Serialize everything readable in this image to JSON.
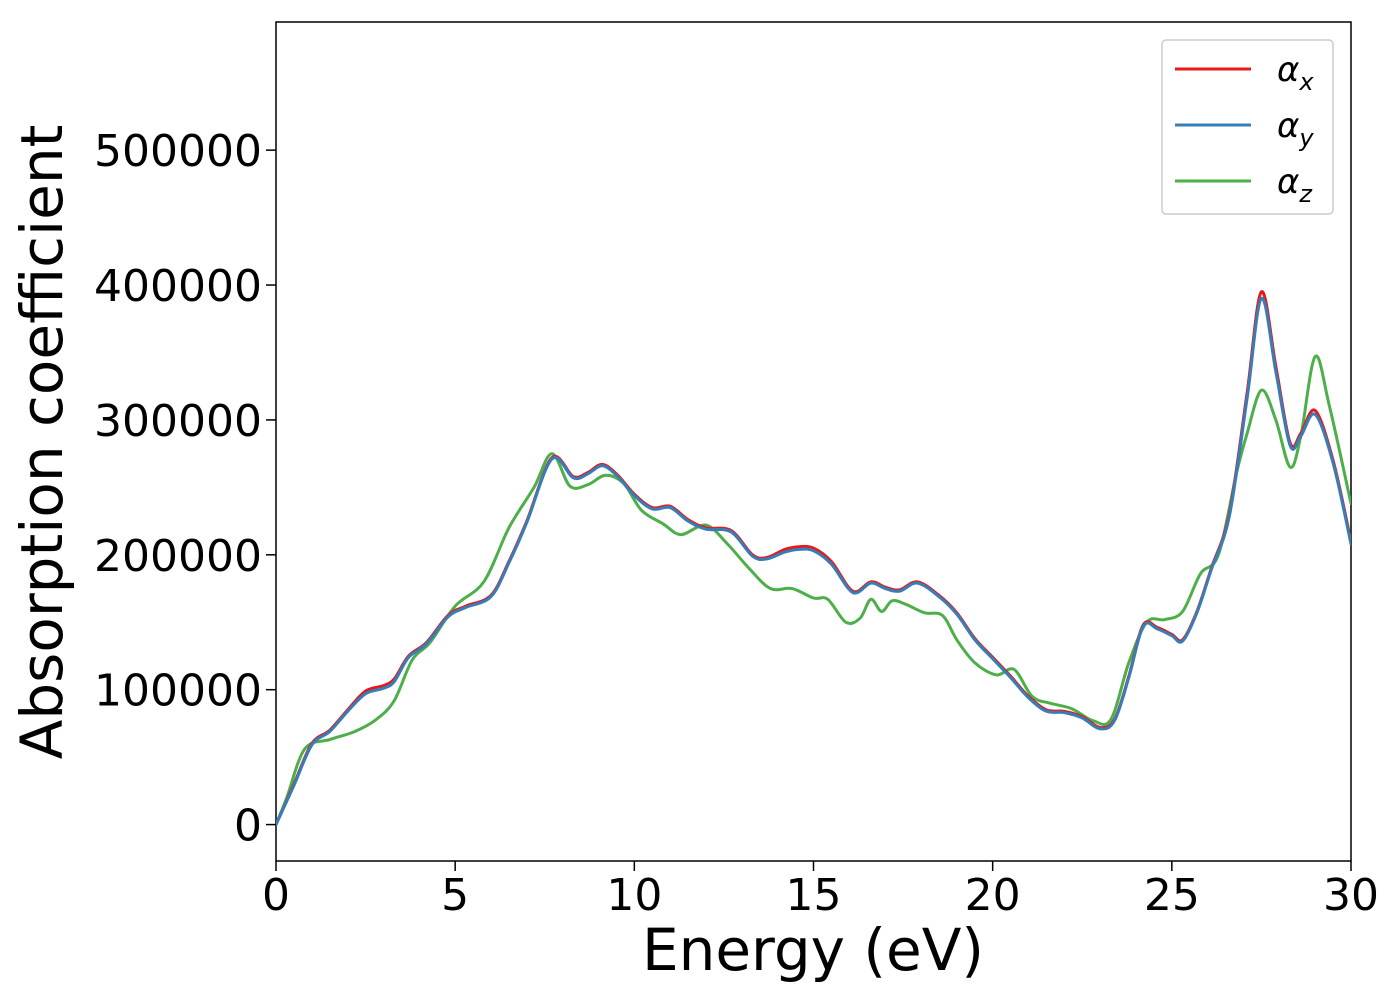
{
  "chart_data": {
    "type": "line",
    "title": "",
    "xlabel": "Energy (eV)",
    "ylabel": "Absorption coefficient",
    "xlim": [
      0,
      30
    ],
    "ylim": [
      -27000,
      595000
    ],
    "x_ticks": [
      0,
      5,
      10,
      15,
      20,
      25,
      30
    ],
    "x_tick_labels": [
      "0",
      "5",
      "10",
      "15",
      "20",
      "25",
      "30"
    ],
    "y_ticks": [
      0,
      100000,
      200000,
      300000,
      400000,
      500000
    ],
    "y_tick_labels": [
      "0",
      "100000",
      "200000",
      "300000",
      "400000",
      "500000"
    ],
    "grid": false,
    "legend_position": "top-right",
    "series": [
      {
        "name": "αx",
        "color": "#e41a1c",
        "x": [
          0,
          0.5,
          1,
          1.5,
          2,
          2.5,
          3,
          3.3,
          3.7,
          4.2,
          4.8,
          5.3,
          6,
          6.5,
          7,
          7.7,
          8.3,
          8.7,
          9.1,
          9.5,
          10,
          10.5,
          11,
          11.5,
          12,
          12.7,
          13.3,
          13.7,
          14.2,
          14.6,
          15,
          15.5,
          16.1,
          16.6,
          17,
          17.4,
          17.9,
          18.5,
          19,
          19.5,
          20,
          20.5,
          21,
          21.5,
          22,
          22.5,
          23,
          23.4,
          23.8,
          24.2,
          24.6,
          25,
          25.3,
          25.7,
          26.1,
          26.6,
          27.1,
          27.5,
          27.9,
          28.3,
          28.6,
          29,
          29.5,
          30
        ],
        "y": [
          0,
          30000,
          60000,
          70000,
          85000,
          99000,
          103000,
          108000,
          125000,
          135000,
          155000,
          162000,
          170000,
          195000,
          225000,
          272000,
          258000,
          261000,
          267000,
          260000,
          245000,
          235000,
          236000,
          226000,
          220000,
          218000,
          200000,
          198000,
          204000,
          206000,
          205000,
          195000,
          173000,
          180000,
          176000,
          174000,
          180000,
          170000,
          157000,
          138000,
          124000,
          110000,
          95000,
          85000,
          84000,
          80000,
          72000,
          78000,
          110000,
          148000,
          146000,
          141000,
          137000,
          158000,
          190000,
          230000,
          320000,
          395000,
          340000,
          283000,
          290000,
          307000,
          270000,
          210000
        ]
      },
      {
        "name": "αy",
        "color": "#377eb8",
        "x": [
          0,
          0.5,
          1,
          1.5,
          2,
          2.5,
          3,
          3.3,
          3.7,
          4.2,
          4.8,
          5.3,
          6,
          6.5,
          7,
          7.7,
          8.3,
          8.7,
          9.1,
          9.5,
          10,
          10.5,
          11,
          11.5,
          12,
          12.7,
          13.3,
          13.7,
          14.2,
          14.6,
          15,
          15.5,
          16.1,
          16.6,
          17,
          17.4,
          17.9,
          18.5,
          19,
          19.5,
          20,
          20.5,
          21,
          21.5,
          22,
          22.5,
          23,
          23.4,
          23.8,
          24.2,
          24.6,
          25,
          25.3,
          25.7,
          26.1,
          26.6,
          27.1,
          27.5,
          27.9,
          28.3,
          28.6,
          29,
          29.5,
          30
        ],
        "y": [
          0,
          29000,
          59000,
          69000,
          84000,
          97000,
          101000,
          106000,
          124000,
          134000,
          154000,
          161000,
          169000,
          194000,
          224000,
          271000,
          257000,
          260000,
          266000,
          259000,
          244000,
          234000,
          235000,
          225000,
          219000,
          217000,
          199000,
          197000,
          202000,
          204000,
          203000,
          193000,
          172000,
          179000,
          175000,
          173000,
          179000,
          169000,
          156000,
          137000,
          123000,
          109000,
          94000,
          84000,
          83000,
          79000,
          71000,
          77000,
          109000,
          147000,
          145000,
          140000,
          136000,
          157000,
          189000,
          228000,
          316000,
          390000,
          336000,
          281000,
          288000,
          304000,
          268000,
          208000
        ]
      },
      {
        "name": "αz",
        "color": "#4daf4a",
        "x": [
          0,
          0.3,
          0.8,
          1.5,
          2.2,
          2.8,
          3.3,
          3.8,
          4.3,
          5,
          5.8,
          6.5,
          7.2,
          7.7,
          8.2,
          8.7,
          9.2,
          9.7,
          10.2,
          10.8,
          11.3,
          12,
          12.6,
          13.2,
          13.8,
          14.4,
          15,
          15.4,
          15.9,
          16.3,
          16.6,
          16.9,
          17.2,
          17.6,
          18.1,
          18.6,
          19,
          19.5,
          20.1,
          20.6,
          21.1,
          21.6,
          22.2,
          22.8,
          23.3,
          23.8,
          24.3,
          24.8,
          25.3,
          25.8,
          26.3,
          26.8,
          27.1,
          27.5,
          27.9,
          28.3,
          28.6,
          29,
          29.4,
          30
        ],
        "y": [
          0,
          20000,
          56000,
          63000,
          69000,
          78000,
          92000,
          122000,
          135000,
          162000,
          180000,
          220000,
          250000,
          275000,
          251000,
          252000,
          259000,
          253000,
          233000,
          223000,
          215000,
          222000,
          208000,
          190000,
          175000,
          175000,
          168000,
          167000,
          150000,
          153000,
          167000,
          158000,
          166000,
          163000,
          157000,
          155000,
          137000,
          120000,
          111000,
          115000,
          95000,
          90000,
          86000,
          77000,
          78000,
          120000,
          150000,
          152000,
          158000,
          186000,
          200000,
          260000,
          290000,
          322000,
          300000,
          265000,
          288000,
          347000,
          310000,
          238000
        ]
      }
    ]
  }
}
